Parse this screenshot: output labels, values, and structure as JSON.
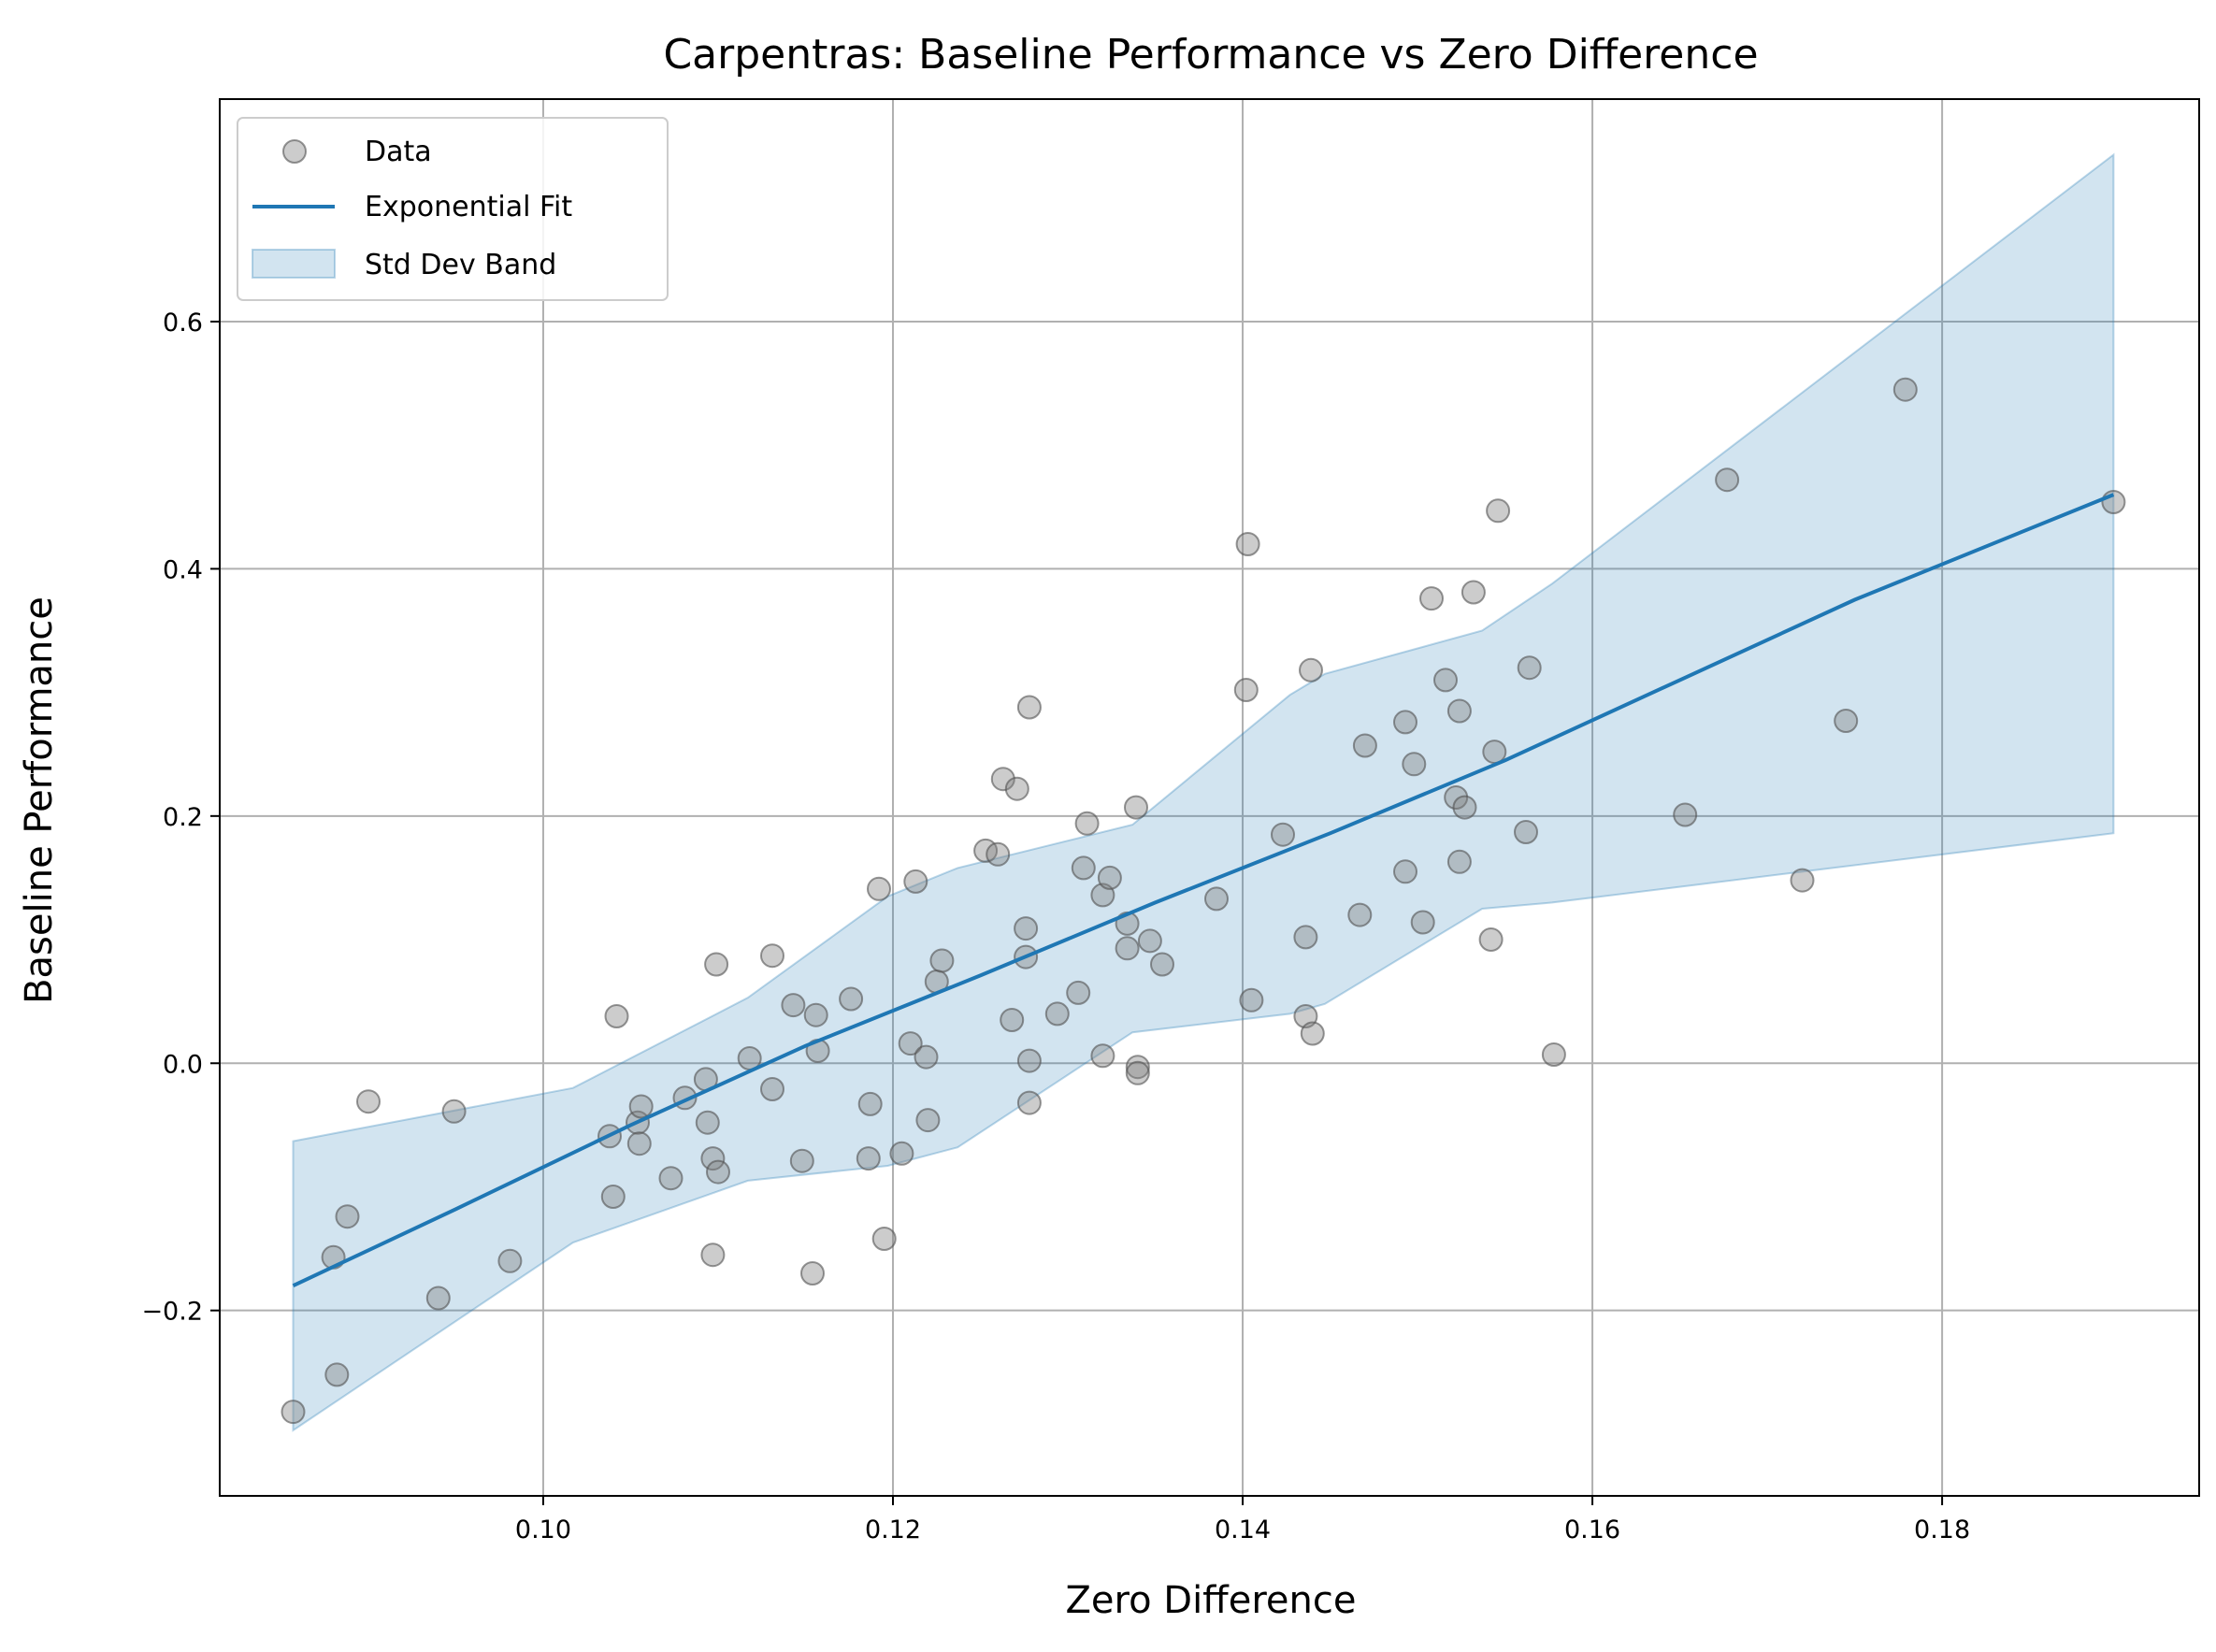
{
  "chart_data": {
    "type": "scatter",
    "title": "Carpentras: Baseline Performance vs Zero Difference",
    "xlabel": "Zero Difference",
    "ylabel": "Baseline Performance",
    "xlim": [
      0.0815,
      0.1947
    ],
    "ylim": [
      -0.35,
      0.78
    ],
    "xticks": [
      0.1,
      0.12,
      0.14,
      0.16,
      0.18
    ],
    "xtick_labels": [
      "0.10",
      "0.12",
      "0.14",
      "0.16",
      "0.18"
    ],
    "yticks": [
      -0.2,
      0.0,
      0.2,
      0.4,
      0.6
    ],
    "ytick_labels": [
      "−0.2",
      "0.0",
      "0.2",
      "0.4",
      "0.6"
    ],
    "grid": true,
    "legend_position": "top-left",
    "legend": [
      "Data",
      "Exponential Fit",
      "Std Dev Band"
    ],
    "colors": {
      "points": "#808080",
      "points_edge": "#505050",
      "fit_line": "#1f77b4",
      "band": "#1f77b4",
      "grid": "#b0b0b0"
    },
    "series": [
      {
        "name": "Data",
        "kind": "scatter",
        "points": [
          [
            0.0857,
            -0.282
          ],
          [
            0.088,
            -0.157
          ],
          [
            0.0882,
            -0.252
          ],
          [
            0.0888,
            -0.124
          ],
          [
            0.09,
            -0.031
          ],
          [
            0.094,
            -0.19
          ],
          [
            0.0949,
            -0.039
          ],
          [
            0.0981,
            -0.16
          ],
          [
            0.1038,
            -0.059
          ],
          [
            0.104,
            -0.108
          ],
          [
            0.1042,
            0.038
          ],
          [
            0.1054,
            -0.048
          ],
          [
            0.1055,
            -0.065
          ],
          [
            0.1056,
            -0.035
          ],
          [
            0.1073,
            -0.093
          ],
          [
            0.1081,
            -0.028
          ],
          [
            0.1093,
            -0.013
          ],
          [
            0.1094,
            -0.048
          ],
          [
            0.1097,
            -0.077
          ],
          [
            0.1097,
            -0.155
          ],
          [
            0.1099,
            0.08
          ],
          [
            0.11,
            -0.088
          ],
          [
            0.1118,
            0.004
          ],
          [
            0.1131,
            0.087
          ],
          [
            0.1131,
            -0.021
          ],
          [
            0.1143,
            0.047
          ],
          [
            0.1148,
            -0.079
          ],
          [
            0.1154,
            -0.17
          ],
          [
            0.1156,
            0.039
          ],
          [
            0.1157,
            0.01
          ],
          [
            0.1176,
            0.052
          ],
          [
            0.1186,
            -0.077
          ],
          [
            0.1187,
            -0.033
          ],
          [
            0.1192,
            0.141
          ],
          [
            0.1195,
            -0.142
          ],
          [
            0.1205,
            -0.073
          ],
          [
            0.121,
            0.016
          ],
          [
            0.1213,
            0.147
          ],
          [
            0.1219,
            0.005
          ],
          [
            0.122,
            -0.046
          ],
          [
            0.1225,
            0.066
          ],
          [
            0.1228,
            0.083
          ],
          [
            0.1253,
            0.172
          ],
          [
            0.126,
            0.169
          ],
          [
            0.1263,
            0.23
          ],
          [
            0.1268,
            0.035
          ],
          [
            0.1271,
            0.222
          ],
          [
            0.1276,
            0.109
          ],
          [
            0.1276,
            0.086
          ],
          [
            0.1278,
            0.002
          ],
          [
            0.1278,
            0.288
          ],
          [
            0.1278,
            -0.032
          ],
          [
            0.1294,
            0.04
          ],
          [
            0.1306,
            0.057
          ],
          [
            0.1309,
            0.158
          ],
          [
            0.1311,
            0.194
          ],
          [
            0.132,
            0.136
          ],
          [
            0.132,
            0.006
          ],
          [
            0.1324,
            0.15
          ],
          [
            0.1334,
            0.113
          ],
          [
            0.1334,
            0.093
          ],
          [
            0.1339,
            0.207
          ],
          [
            0.134,
            -0.003
          ],
          [
            0.134,
            -0.008
          ],
          [
            0.1347,
            0.099
          ],
          [
            0.1354,
            0.08
          ],
          [
            0.1385,
            0.133
          ],
          [
            0.1402,
            0.302
          ],
          [
            0.1403,
            0.42
          ],
          [
            0.1405,
            0.051
          ],
          [
            0.1423,
            0.185
          ],
          [
            0.1436,
            0.102
          ],
          [
            0.1436,
            0.038
          ],
          [
            0.1439,
            0.318
          ],
          [
            0.144,
            0.024
          ],
          [
            0.1467,
            0.12
          ],
          [
            0.147,
            0.257
          ],
          [
            0.1493,
            0.155
          ],
          [
            0.1493,
            0.276
          ],
          [
            0.1498,
            0.242
          ],
          [
            0.1503,
            0.114
          ],
          [
            0.1508,
            0.376
          ],
          [
            0.1516,
            0.31
          ],
          [
            0.1522,
            0.215
          ],
          [
            0.1524,
            0.163
          ],
          [
            0.1524,
            0.285
          ],
          [
            0.1527,
            0.207
          ],
          [
            0.1532,
            0.381
          ],
          [
            0.1542,
            0.1
          ],
          [
            0.1544,
            0.252
          ],
          [
            0.1546,
            0.447
          ],
          [
            0.1562,
            0.187
          ],
          [
            0.1564,
            0.32
          ],
          [
            0.1578,
            0.007
          ],
          [
            0.1653,
            0.201
          ],
          [
            0.1677,
            0.472
          ],
          [
            0.172,
            0.148
          ],
          [
            0.1745,
            0.277
          ],
          [
            0.1779,
            0.545
          ],
          [
            0.1898,
            0.454
          ]
        ]
      },
      {
        "name": "Exponential Fit",
        "kind": "line",
        "points": [
          [
            0.0857,
            -0.18
          ],
          [
            0.095,
            -0.118
          ],
          [
            0.105,
            -0.05
          ],
          [
            0.115,
            0.014
          ],
          [
            0.125,
            0.071
          ],
          [
            0.135,
            0.13
          ],
          [
            0.145,
            0.186
          ],
          [
            0.155,
            0.245
          ],
          [
            0.165,
            0.31
          ],
          [
            0.175,
            0.375
          ],
          [
            0.1898,
            0.46
          ]
        ]
      },
      {
        "name": "Std Dev Band",
        "kind": "band",
        "x": [
          0.0857,
          0.1017,
          0.1117,
          0.1197,
          0.1237,
          0.1337,
          0.1427,
          0.1447,
          0.1537,
          0.1577,
          0.1898
        ],
        "upper": [
          -0.063,
          -0.02,
          0.053,
          0.135,
          0.158,
          0.193,
          0.298,
          0.315,
          0.35,
          0.388,
          0.735
        ],
        "lower": [
          -0.297,
          -0.145,
          -0.095,
          -0.083,
          -0.068,
          0.025,
          0.04,
          0.048,
          0.125,
          0.13,
          0.186
        ]
      }
    ]
  }
}
